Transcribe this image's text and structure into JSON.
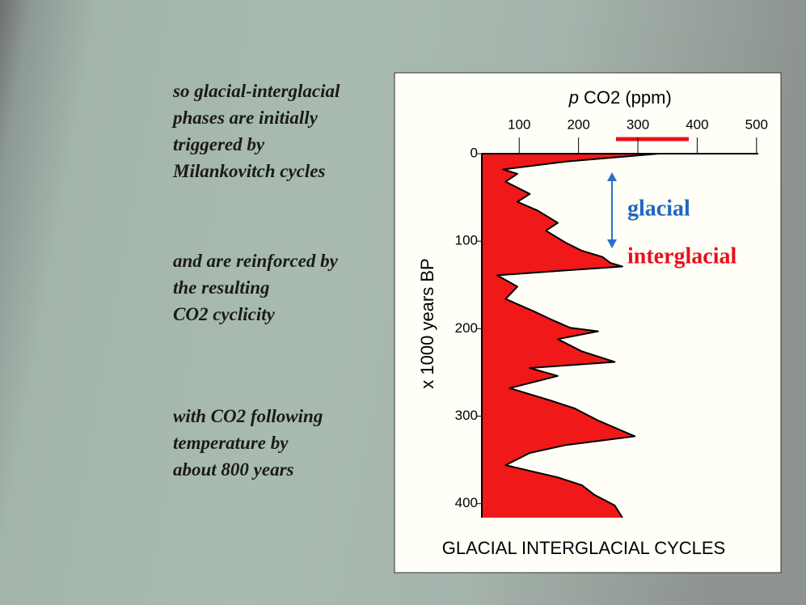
{
  "slide": {
    "paragraphs": [
      [
        "so glacial-interglacial",
        "phases are initially",
        "triggered by",
        "Milankovitch cycles"
      ],
      [
        "and are reinforced by",
        "the resulting",
        "CO2 cyclicity"
      ],
      [
        "with CO2 following",
        "temperature by",
        "about 800 years"
      ]
    ]
  },
  "chart_data": {
    "type": "area",
    "title": "GLACIAL INTERGLACIAL CYCLES",
    "x_label_italic": "p",
    "x_label": "CO2 (ppm)",
    "y_label": "x 1000 years BP",
    "annotations": [
      "glacial",
      "interglacial"
    ],
    "x": [
      0,
      9,
      18,
      23,
      32,
      46,
      55,
      65,
      79,
      88,
      102,
      111,
      118,
      125,
      129,
      134,
      139,
      152,
      166,
      180,
      189,
      199,
      203,
      212,
      226,
      238,
      245,
      254,
      268,
      282,
      291,
      305,
      323,
      333,
      342,
      356,
      370,
      379,
      390,
      402,
      416
    ],
    "series": [
      {
        "name": "CO2",
        "color": "#f01818",
        "values": [
          335,
          179,
          73,
          97,
          77,
          118,
          97,
          131,
          165,
          145,
          179,
          206,
          240,
          254,
          274,
          165,
          63,
          97,
          77,
          124,
          152,
          186,
          233,
          165,
          206,
          261,
          118,
          165,
          84,
          152,
          193,
          233,
          295,
          179,
          118,
          77,
          165,
          206,
          227,
          261,
          274
        ]
      }
    ],
    "xlim": [
      37,
      503
    ],
    "xticks": [
      100,
      200,
      300,
      400,
      500
    ],
    "ylim": [
      0,
      416
    ],
    "yticks": [
      0,
      100,
      200,
      300,
      400
    ],
    "y_inverted": true
  }
}
